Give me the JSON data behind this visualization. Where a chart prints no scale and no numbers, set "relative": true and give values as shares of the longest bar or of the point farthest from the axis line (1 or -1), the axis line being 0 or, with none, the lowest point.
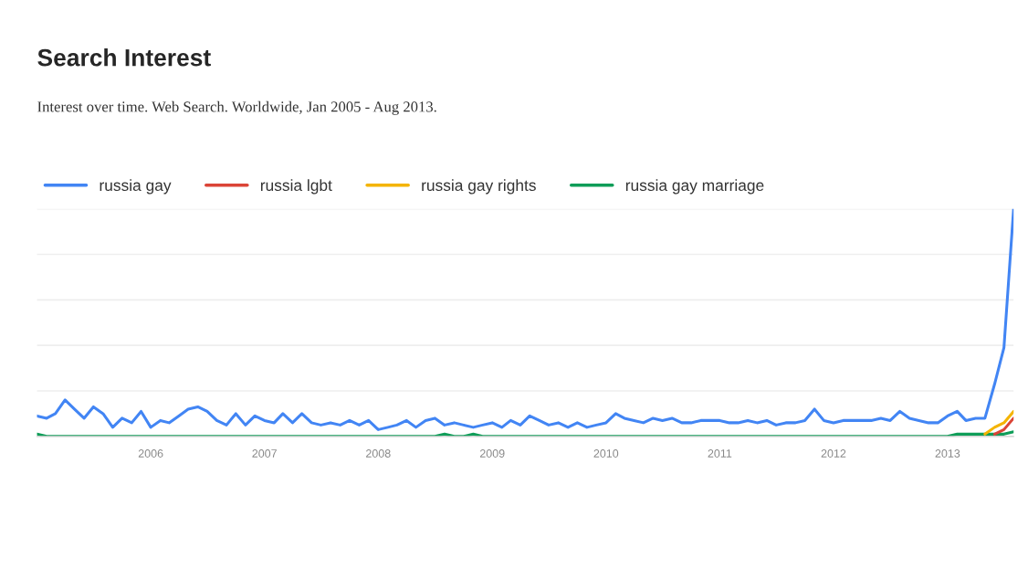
{
  "chart_data": {
    "type": "line",
    "title": "Search Interest",
    "subtitle": "Interest over time. Web Search. Worldwide, Jan 2005 - Aug 2013.",
    "relative": true,
    "grid": "y",
    "legend": "top left",
    "marker": "none",
    "line_style": "solid",
    "x": [
      "2005-01",
      "2005-02",
      "2005-03",
      "2005-04",
      "2005-05",
      "2005-06",
      "2005-07",
      "2005-08",
      "2005-09",
      "2005-10",
      "2005-11",
      "2005-12",
      "2006-01",
      "2006-02",
      "2006-03",
      "2006-04",
      "2006-05",
      "2006-06",
      "2006-07",
      "2006-08",
      "2006-09",
      "2006-10",
      "2006-11",
      "2006-12",
      "2007-01",
      "2007-02",
      "2007-03",
      "2007-04",
      "2007-05",
      "2007-06",
      "2007-07",
      "2007-08",
      "2007-09",
      "2007-10",
      "2007-11",
      "2007-12",
      "2008-01",
      "2008-02",
      "2008-03",
      "2008-04",
      "2008-05",
      "2008-06",
      "2008-07",
      "2008-08",
      "2008-09",
      "2008-10",
      "2008-11",
      "2008-12",
      "2009-01",
      "2009-02",
      "2009-03",
      "2009-04",
      "2009-05",
      "2009-06",
      "2009-07",
      "2009-08",
      "2009-09",
      "2009-10",
      "2009-11",
      "2009-12",
      "2010-01",
      "2010-02",
      "2010-03",
      "2010-04",
      "2010-05",
      "2010-06",
      "2010-07",
      "2010-08",
      "2010-09",
      "2010-10",
      "2010-11",
      "2010-12",
      "2011-01",
      "2011-02",
      "2011-03",
      "2011-04",
      "2011-05",
      "2011-06",
      "2011-07",
      "2011-08",
      "2011-09",
      "2011-10",
      "2011-11",
      "2011-12",
      "2012-01",
      "2012-02",
      "2012-03",
      "2012-04",
      "2012-05",
      "2012-06",
      "2012-07",
      "2012-08",
      "2012-09",
      "2012-10",
      "2012-11",
      "2012-12",
      "2013-01",
      "2013-02",
      "2013-03",
      "2013-04",
      "2013-05",
      "2013-06",
      "2013-07",
      "2013-08"
    ],
    "xlim": [
      "2005-01",
      "2013-08"
    ],
    "xticks": [
      {
        "value": "2006",
        "label": "2006"
      },
      {
        "value": "2007",
        "label": "2007"
      },
      {
        "value": "2008",
        "label": "2008"
      },
      {
        "value": "2009",
        "label": "2009"
      },
      {
        "value": "2010",
        "label": "2010"
      },
      {
        "value": "2011",
        "label": "2011"
      },
      {
        "value": "2012",
        "label": "2012"
      },
      {
        "value": "2013",
        "label": "2013"
      }
    ],
    "series": [
      {
        "name": "russia gay",
        "color": "#4285f4",
        "values": [
          0.09,
          0.08,
          0.1,
          0.16,
          0.12,
          0.08,
          0.13,
          0.1,
          0.04,
          0.08,
          0.06,
          0.11,
          0.04,
          0.07,
          0.06,
          0.09,
          0.12,
          0.13,
          0.11,
          0.07,
          0.05,
          0.1,
          0.05,
          0.09,
          0.07,
          0.06,
          0.1,
          0.06,
          0.1,
          0.06,
          0.05,
          0.06,
          0.05,
          0.07,
          0.05,
          0.07,
          0.03,
          0.04,
          0.05,
          0.07,
          0.04,
          0.07,
          0.08,
          0.05,
          0.06,
          0.05,
          0.04,
          0.05,
          0.06,
          0.04,
          0.07,
          0.05,
          0.09,
          0.07,
          0.05,
          0.06,
          0.04,
          0.06,
          0.04,
          0.05,
          0.06,
          0.1,
          0.08,
          0.07,
          0.06,
          0.08,
          0.07,
          0.08,
          0.06,
          0.06,
          0.07,
          0.07,
          0.07,
          0.06,
          0.06,
          0.07,
          0.06,
          0.07,
          0.05,
          0.06,
          0.06,
          0.07,
          0.12,
          0.07,
          0.06,
          0.07,
          0.07,
          0.07,
          0.07,
          0.08,
          0.07,
          0.11,
          0.08,
          0.07,
          0.06,
          0.06,
          0.09,
          0.11,
          0.07,
          0.08,
          0.08,
          0.23,
          0.39,
          1
        ]
      },
      {
        "name": "russia lgbt",
        "color": "#db4437",
        "values": [
          null,
          null,
          null,
          null,
          null,
          null,
          null,
          null,
          null,
          null,
          null,
          null,
          null,
          null,
          null,
          null,
          null,
          null,
          null,
          null,
          null,
          null,
          null,
          null,
          null,
          null,
          null,
          null,
          null,
          null,
          null,
          null,
          null,
          null,
          null,
          null,
          null,
          null,
          null,
          null,
          null,
          null,
          null,
          null,
          null,
          null,
          null,
          null,
          null,
          null,
          null,
          null,
          null,
          null,
          null,
          null,
          null,
          null,
          null,
          null,
          null,
          null,
          null,
          null,
          null,
          null,
          null,
          null,
          null,
          null,
          null,
          null,
          null,
          null,
          null,
          null,
          null,
          null,
          null,
          null,
          null,
          null,
          null,
          null,
          null,
          null,
          null,
          null,
          null,
          null,
          null,
          null,
          null,
          null,
          null,
          null,
          null,
          null,
          null,
          null,
          null,
          0.01,
          0.03,
          0.08
        ]
      },
      {
        "name": "russia gay rights",
        "color": "#f4b400",
        "values": [
          null,
          null,
          null,
          null,
          null,
          null,
          null,
          null,
          null,
          null,
          null,
          null,
          null,
          null,
          null,
          null,
          null,
          null,
          null,
          null,
          null,
          null,
          null,
          null,
          null,
          null,
          null,
          null,
          null,
          null,
          null,
          null,
          null,
          null,
          null,
          null,
          null,
          null,
          null,
          null,
          null,
          null,
          null,
          null,
          null,
          null,
          null,
          null,
          null,
          null,
          null,
          null,
          null,
          null,
          null,
          null,
          null,
          null,
          null,
          null,
          null,
          null,
          null,
          null,
          null,
          null,
          null,
          null,
          null,
          null,
          null,
          null,
          null,
          null,
          null,
          null,
          null,
          null,
          null,
          null,
          null,
          null,
          null,
          null,
          null,
          null,
          null,
          null,
          null,
          null,
          null,
          null,
          null,
          null,
          null,
          null,
          null,
          null,
          null,
          null,
          0.01,
          0.04,
          0.06,
          0.11
        ]
      },
      {
        "name": "russia gay marriage",
        "color": "#0f9d58",
        "values": [
          0.01,
          0,
          0,
          0,
          0,
          0,
          0,
          0,
          0,
          0,
          0,
          0,
          0,
          0,
          0,
          0,
          0,
          0,
          0,
          0,
          0,
          0,
          0,
          0,
          0,
          0,
          0,
          0,
          0,
          0,
          0,
          0,
          0,
          0,
          0,
          0,
          0,
          0,
          0,
          0,
          0,
          0,
          0,
          0.01,
          0,
          0,
          0.01,
          0,
          0,
          0,
          0,
          0,
          0,
          0,
          0,
          0,
          0,
          0,
          0,
          0,
          0,
          0,
          0,
          0,
          0,
          0,
          0,
          0,
          0,
          0,
          0,
          0,
          0,
          0,
          0,
          0,
          0,
          0,
          0,
          0,
          0,
          0,
          0,
          0,
          0,
          0,
          0,
          0,
          0,
          0,
          0,
          0,
          0,
          0,
          0,
          0,
          0,
          0.01,
          0.01,
          0.01,
          0.01,
          0.01,
          0.01,
          0.02
        ]
      }
    ]
  }
}
